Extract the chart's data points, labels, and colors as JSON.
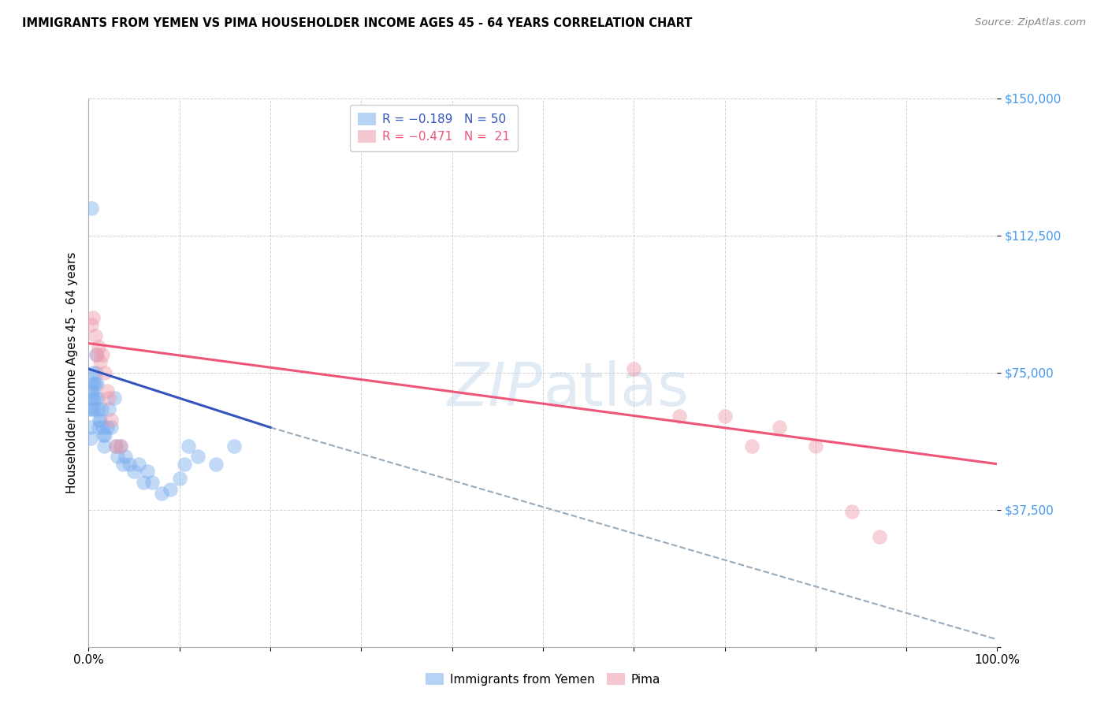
{
  "title": "IMMIGRANTS FROM YEMEN VS PIMA HOUSEHOLDER INCOME AGES 45 - 64 YEARS CORRELATION CHART",
  "source": "Source: ZipAtlas.com",
  "ylabel": "Householder Income Ages 45 - 64 years",
  "xlim": [
    0,
    1.0
  ],
  "ylim": [
    0,
    150000
  ],
  "xticks": [
    0.0,
    0.1,
    0.2,
    0.3,
    0.4,
    0.5,
    0.6,
    0.7,
    0.8,
    0.9,
    1.0
  ],
  "xticklabels": [
    "0.0%",
    "",
    "",
    "",
    "",
    "",
    "",
    "",
    "",
    "",
    "100.0%"
  ],
  "yticks": [
    0,
    37500,
    75000,
    112500,
    150000
  ],
  "yticklabels": [
    "",
    "$37,500",
    "$75,000",
    "$112,500",
    "$150,000"
  ],
  "ytick_color": "#4499ee",
  "blue_scatter_x": [
    0.001,
    0.002,
    0.002,
    0.003,
    0.003,
    0.004,
    0.004,
    0.005,
    0.005,
    0.006,
    0.006,
    0.007,
    0.007,
    0.008,
    0.008,
    0.009,
    0.01,
    0.01,
    0.011,
    0.012,
    0.013,
    0.014,
    0.015,
    0.016,
    0.017,
    0.018,
    0.02,
    0.022,
    0.025,
    0.028,
    0.03,
    0.032,
    0.035,
    0.038,
    0.04,
    0.045,
    0.05,
    0.055,
    0.06,
    0.065,
    0.07,
    0.08,
    0.09,
    0.1,
    0.105,
    0.11,
    0.12,
    0.14,
    0.16,
    0.003
  ],
  "blue_scatter_y": [
    65000,
    57000,
    60000,
    68000,
    72000,
    70000,
    65000,
    75000,
    68000,
    72000,
    65000,
    68000,
    72000,
    75000,
    80000,
    72000,
    68000,
    65000,
    60000,
    62000,
    62000,
    65000,
    60000,
    58000,
    55000,
    58000,
    60000,
    65000,
    60000,
    68000,
    55000,
    52000,
    55000,
    50000,
    52000,
    50000,
    48000,
    50000,
    45000,
    48000,
    45000,
    42000,
    43000,
    46000,
    50000,
    55000,
    52000,
    50000,
    55000,
    120000
  ],
  "pink_scatter_x": [
    0.003,
    0.005,
    0.007,
    0.009,
    0.011,
    0.013,
    0.015,
    0.018,
    0.02,
    0.022,
    0.025,
    0.03,
    0.035,
    0.6,
    0.65,
    0.7,
    0.73,
    0.76,
    0.8,
    0.84,
    0.87
  ],
  "pink_scatter_y": [
    88000,
    90000,
    85000,
    80000,
    82000,
    78000,
    80000,
    75000,
    70000,
    68000,
    62000,
    55000,
    55000,
    76000,
    63000,
    63000,
    55000,
    60000,
    55000,
    37000,
    30000
  ],
  "blue_line_x": [
    0.0,
    0.2
  ],
  "blue_line_y": [
    76000,
    60000
  ],
  "pink_line_x": [
    0.0,
    1.0
  ],
  "pink_line_y": [
    83000,
    50000
  ],
  "dashed_line_x": [
    0.2,
    1.0
  ],
  "dashed_line_y": [
    60000,
    2000
  ],
  "background_color": "#ffffff",
  "grid_color": "#cccccc",
  "blue_color": "#7aadee",
  "pink_color": "#ee99aa",
  "blue_line_color": "#3355bb",
  "pink_line_color": "#ee5577",
  "dashed_line_color": "#99aabb"
}
